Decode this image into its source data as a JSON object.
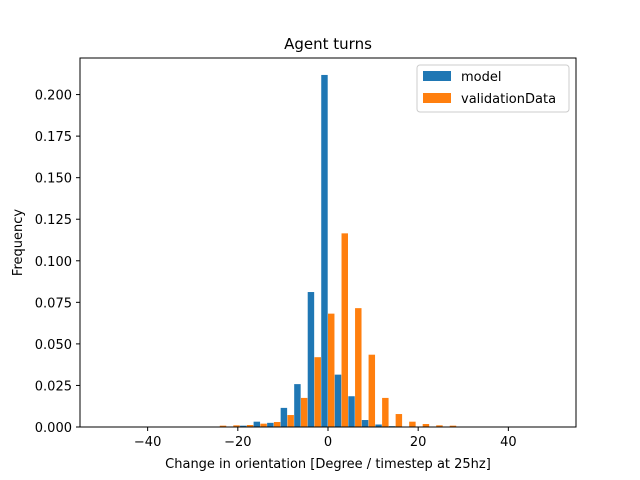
{
  "chart_data": {
    "type": "bar",
    "title": "Agent turns",
    "xlabel": "Change in orientation [Degree / timestep at 25hz]",
    "ylabel": "Frequency",
    "xlim": [
      -55,
      55
    ],
    "ylim": [
      0,
      0.222
    ],
    "xticks": [
      -40,
      -20,
      0,
      20,
      40
    ],
    "xtick_labels": [
      "−40",
      "−20",
      "0",
      "20",
      "40"
    ],
    "yticks": [
      0,
      0.025,
      0.05,
      0.075,
      0.1,
      0.125,
      0.15,
      0.175,
      0.2
    ],
    "ytick_labels": [
      "0.000",
      "0.025",
      "0.050",
      "0.075",
      "0.100",
      "0.125",
      "0.150",
      "0.175",
      "0.200"
    ],
    "bin_width": 3.0,
    "bin_centers": [
      -24,
      -21,
      -18,
      -15,
      -12,
      -9,
      -6,
      -3,
      0,
      3,
      6,
      9,
      12,
      15,
      18,
      21,
      24,
      27
    ],
    "legend_position": "upper-right",
    "series": [
      {
        "name": "model",
        "color": "#1f77b4",
        "values": [
          0.0003,
          0.0003,
          0.0008,
          0.0032,
          0.0025,
          0.0115,
          0.0258,
          0.0812,
          0.2118,
          0.0315,
          0.0185,
          0.0042,
          0.0015,
          0.0005,
          0.0002,
          0.0,
          0.0,
          0.0
        ]
      },
      {
        "name": "validationData",
        "color": "#ff7f0e",
        "values": [
          0.0008,
          0.001,
          0.0012,
          0.002,
          0.003,
          0.0072,
          0.0175,
          0.042,
          0.0682,
          0.1165,
          0.0715,
          0.0435,
          0.0175,
          0.0078,
          0.0032,
          0.0018,
          0.001,
          0.0008
        ]
      }
    ]
  }
}
